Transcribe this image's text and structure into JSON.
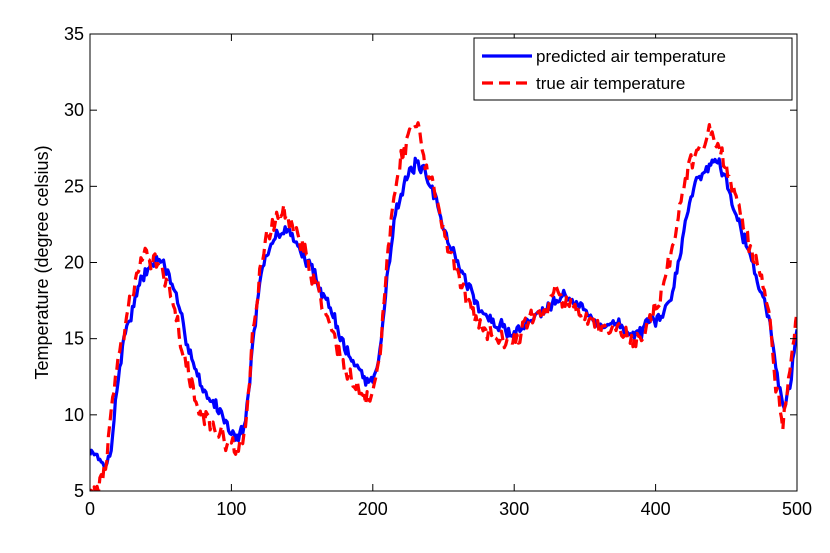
{
  "chart_data": {
    "type": "line",
    "title": "",
    "xlabel": "",
    "ylabel": "Temperature (degree celsius)",
    "xlim": [
      0,
      500
    ],
    "ylim": [
      5,
      35
    ],
    "xticks": [
      0,
      100,
      200,
      300,
      400,
      500
    ],
    "yticks": [
      5,
      10,
      15,
      20,
      25,
      30,
      35
    ],
    "grid": false,
    "legend_position": "top-right",
    "series": [
      {
        "name": "predicted air temperature",
        "color": "#0000ff",
        "style": "solid",
        "anchors_x": [
          0,
          3,
          6,
          9,
          12,
          15,
          20,
          25,
          30,
          35,
          40,
          45,
          50,
          55,
          60,
          65,
          70,
          75,
          80,
          85,
          90,
          95,
          100,
          105,
          110,
          115,
          120,
          125,
          130,
          135,
          140,
          145,
          150,
          155,
          160,
          165,
          170,
          175,
          180,
          185,
          190,
          195,
          200,
          205,
          210,
          215,
          220,
          225,
          230,
          235,
          240,
          245,
          250,
          255,
          260,
          265,
          270,
          275,
          280,
          285,
          290,
          295,
          300,
          305,
          310,
          315,
          320,
          325,
          330,
          335,
          340,
          345,
          350,
          355,
          360,
          365,
          370,
          375,
          380,
          385,
          390,
          395,
          400,
          405,
          410,
          415,
          420,
          425,
          430,
          435,
          440,
          445,
          450,
          455,
          460,
          465,
          470,
          475,
          480,
          485,
          490,
          495,
          500
        ],
        "anchors_y": [
          7.3,
          7.8,
          7.0,
          6.6,
          6.8,
          8.0,
          12.5,
          15.5,
          17.0,
          18.5,
          19.5,
          20.0,
          20.3,
          19.2,
          18.0,
          16.0,
          14.5,
          13.0,
          11.5,
          11.0,
          10.5,
          9.8,
          9.0,
          8.5,
          9.5,
          14.5,
          18.5,
          20.5,
          21.5,
          22.0,
          22.2,
          21.5,
          20.5,
          19.8,
          19.0,
          18.0,
          17.0,
          15.8,
          14.5,
          13.5,
          13.0,
          12.3,
          12.2,
          14.0,
          19.0,
          23.0,
          24.5,
          25.5,
          26.5,
          26.0,
          25.0,
          24.0,
          22.5,
          21.0,
          20.0,
          19.0,
          18.0,
          17.0,
          16.5,
          16.0,
          15.8,
          15.5,
          15.5,
          15.7,
          16.0,
          16.5,
          17.0,
          17.3,
          17.8,
          18.0,
          17.5,
          17.2,
          16.8,
          16.2,
          16.0,
          16.0,
          16.0,
          15.8,
          15.5,
          15.2,
          15.5,
          15.8,
          16.0,
          16.5,
          17.5,
          19.5,
          22.0,
          24.5,
          25.5,
          26.0,
          26.8,
          26.5,
          25.5,
          24.0,
          22.5,
          21.0,
          19.5,
          18.0,
          16.5,
          13.0,
          10.5,
          12.0,
          15.5
        ],
        "noise_amplitude": 0.55,
        "noise_seed": 7
      },
      {
        "name": "true air temperature",
        "color": "#ff0000",
        "style": "dashed",
        "anchors_x": [
          0,
          3,
          6,
          9,
          12,
          15,
          20,
          25,
          30,
          35,
          40,
          45,
          50,
          55,
          60,
          65,
          70,
          75,
          80,
          85,
          90,
          95,
          100,
          105,
          110,
          115,
          120,
          125,
          130,
          135,
          140,
          145,
          150,
          155,
          160,
          165,
          170,
          175,
          180,
          185,
          190,
          195,
          200,
          205,
          210,
          215,
          220,
          225,
          230,
          235,
          240,
          245,
          250,
          255,
          260,
          265,
          270,
          275,
          280,
          285,
          290,
          295,
          300,
          305,
          310,
          315,
          320,
          325,
          330,
          335,
          340,
          345,
          350,
          355,
          360,
          365,
          370,
          375,
          380,
          385,
          390,
          395,
          400,
          405,
          410,
          415,
          420,
          425,
          430,
          435,
          440,
          445,
          450,
          455,
          460,
          465,
          470,
          475,
          480,
          485,
          490,
          495,
          500
        ],
        "anchors_y": [
          5.3,
          5.0,
          5.2,
          6.0,
          7.5,
          10.0,
          13.5,
          16.0,
          18.0,
          19.5,
          20.2,
          20.5,
          20.0,
          18.5,
          16.5,
          14.5,
          12.5,
          11.0,
          10.0,
          9.3,
          8.8,
          8.5,
          8.0,
          7.3,
          9.0,
          15.0,
          19.5,
          21.5,
          22.5,
          23.5,
          23.0,
          22.0,
          21.0,
          20.0,
          18.5,
          17.0,
          16.0,
          14.5,
          13.0,
          12.0,
          11.5,
          10.8,
          11.2,
          14.0,
          20.0,
          25.0,
          27.0,
          28.0,
          29.5,
          27.5,
          26.0,
          24.0,
          22.0,
          20.5,
          19.0,
          18.0,
          17.0,
          16.0,
          15.5,
          15.2,
          15.0,
          15.0,
          15.2,
          15.5,
          16.0,
          16.5,
          17.0,
          17.5,
          18.0,
          17.8,
          17.0,
          16.5,
          16.0,
          15.8,
          15.5,
          15.5,
          15.5,
          15.3,
          15.0,
          14.8,
          15.2,
          16.0,
          17.0,
          18.5,
          20.0,
          22.5,
          25.0,
          26.5,
          27.0,
          28.0,
          28.5,
          27.5,
          26.0,
          24.5,
          23.0,
          21.5,
          20.0,
          18.5,
          17.0,
          12.0,
          9.8,
          13.0,
          17.0
        ],
        "noise_amplitude": 0.8,
        "noise_seed": 13
      }
    ]
  }
}
